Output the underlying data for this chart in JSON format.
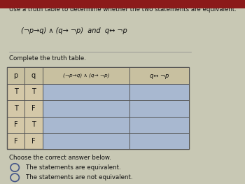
{
  "title_text": "Use a truth table to determine whether the two statements are equivalent.",
  "formula_text": "(¬p→q) ∧ (q→ ¬p)  and  q↔ ¬p",
  "complete_text": "Complete the truth table.",
  "col_headers": [
    "p",
    "q",
    "(¬p→q) ∧ (q→ ¬p)",
    "q↔ ¬p"
  ],
  "rows": [
    [
      "T",
      "T",
      "",
      ""
    ],
    [
      "T",
      "F",
      "",
      ""
    ],
    [
      "F",
      "T",
      "",
      ""
    ],
    [
      "F",
      "F",
      "",
      ""
    ]
  ],
  "answer_text": "Choose the correct answer below.",
  "option1": "The statements are equivalent.",
  "option2": "The statements are not equivalent.",
  "bg_color": "#c8c8b4",
  "table_bg": "#d4c8a8",
  "header_bg": "#c8c0a0",
  "cell_highlight": "#a8b8d0",
  "border_color": "#555555",
  "text_color": "#111111",
  "title_bar_color": "#8b1a1a"
}
